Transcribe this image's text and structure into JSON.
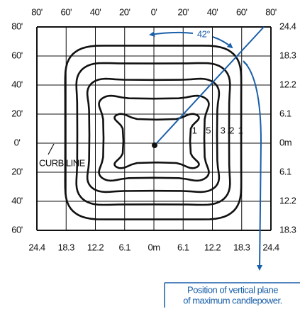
{
  "top_labels": [
    "80'",
    "60'",
    "40'",
    "20'",
    "0'",
    "20'",
    "40'",
    "60'",
    "80'"
  ],
  "left_labels": [
    "80'",
    "60'",
    "40'",
    "20'",
    "0'",
    "20'",
    "40'",
    "60'"
  ],
  "right_labels": [
    "24.4",
    "18.3",
    "12.2",
    "6.1",
    "0m",
    "6.1",
    "12.2",
    "18.3"
  ],
  "bottom_labels": [
    "24.4",
    "18.3",
    "12.2",
    "6.1",
    "0m",
    "6.1",
    "12.2",
    "18.3",
    "24.4"
  ],
  "contour_labels": [
    "1",
    ".5",
    "3",
    ".2",
    "1"
  ],
  "angle_label": "42°",
  "curb_label": "CURB LINE",
  "caption": [
    "Position of vertical plane",
    "of maximum candlepower."
  ]
}
